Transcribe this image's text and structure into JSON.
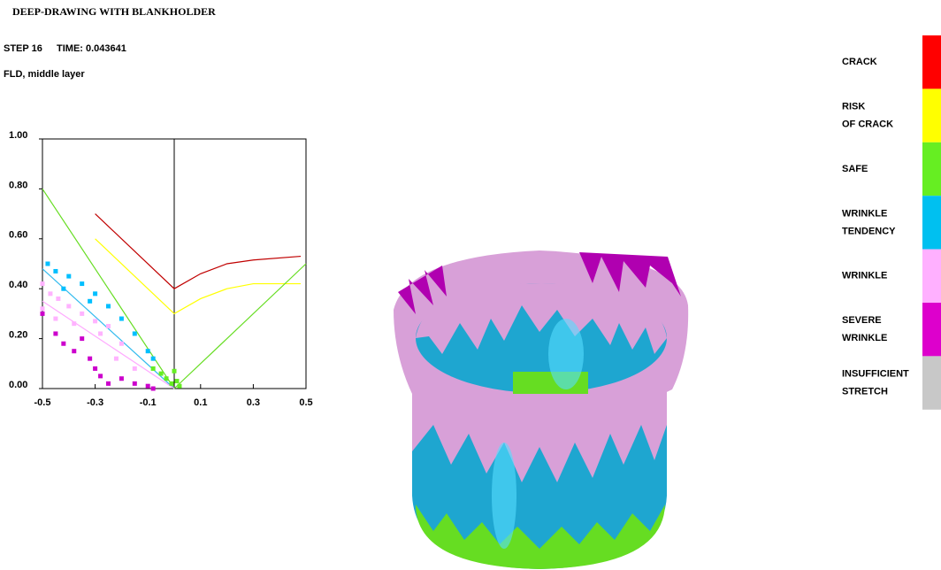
{
  "title": "DEEP-DRAWING WITH BLANKHOLDER",
  "step": "STEP 16",
  "time_label": "TIME:",
  "time": "0.043641",
  "result": "FLD, middle layer",
  "chart_data": {
    "type": "scatter",
    "xlim": [
      -0.5,
      0.5
    ],
    "ylim": [
      0,
      1.0
    ],
    "xticks": [
      -0.5,
      -0.3,
      -0.1,
      0.1,
      0.3,
      0.5
    ],
    "yticks": [
      {
        "value": 0,
        "label": "0.00"
      },
      {
        "value": 0.2,
        "label": "0.20"
      },
      {
        "value": 0.4,
        "label": "0.40"
      },
      {
        "value": 0.6,
        "label": "0.60"
      },
      {
        "value": 0.8,
        "label": "0.80"
      },
      {
        "value": 1.0,
        "label": "1.00"
      }
    ],
    "curves": [
      {
        "color": "#c00000",
        "x": [
          -0.3,
          0,
          0.1,
          0.2,
          0.3,
          0.48
        ],
        "y": [
          0.7,
          0.4,
          0.46,
          0.5,
          0.515,
          0.53
        ]
      },
      {
        "color": "#ffff00",
        "x": [
          -0.3,
          0,
          0.1,
          0.2,
          0.3,
          0.48
        ],
        "y": [
          0.6,
          0.3,
          0.36,
          0.4,
          0.42,
          0.42
        ]
      },
      {
        "color": "#66dd22",
        "x": [
          -0.5,
          0,
          0.5
        ],
        "y": [
          0.8,
          0,
          0.5
        ]
      },
      {
        "color": "#33bbee",
        "x": [
          -0.5,
          0
        ],
        "y": [
          0.48,
          0
        ]
      },
      {
        "color": "#ffaaff",
        "x": [
          -0.5,
          0
        ],
        "y": [
          0.35,
          0
        ]
      }
    ],
    "series": [
      {
        "color": "#00bfff",
        "x": [
          -0.48,
          -0.45,
          -0.42,
          -0.4,
          -0.35,
          -0.32,
          -0.3,
          -0.25,
          -0.2,
          -0.15,
          -0.1,
          -0.08
        ],
        "y": [
          0.5,
          0.47,
          0.4,
          0.45,
          0.42,
          0.35,
          0.38,
          0.33,
          0.28,
          0.22,
          0.15,
          0.12
        ]
      },
      {
        "color": "#ffb3ff",
        "x": [
          -0.5,
          -0.47,
          -0.44,
          -0.4,
          -0.35,
          -0.3,
          -0.28,
          -0.25,
          -0.2,
          -0.5,
          -0.45,
          -0.38,
          -0.22,
          -0.15
        ],
        "y": [
          0.42,
          0.38,
          0.36,
          0.33,
          0.3,
          0.27,
          0.22,
          0.25,
          0.18,
          0.32,
          0.28,
          0.26,
          0.12,
          0.08
        ]
      },
      {
        "color": "#cc00cc",
        "x": [
          -0.5,
          -0.45,
          -0.42,
          -0.38,
          -0.35,
          -0.32,
          -0.3,
          -0.28,
          -0.25,
          -0.2,
          -0.15,
          -0.1,
          -0.08
        ],
        "y": [
          0.3,
          0.22,
          0.18,
          0.15,
          0.2,
          0.12,
          0.08,
          0.05,
          0.02,
          0.04,
          0.02,
          0.01,
          0.0
        ]
      },
      {
        "color": "#66ee22",
        "x": [
          -0.08,
          -0.05,
          -0.03,
          -0.01,
          0,
          0.01,
          0.02
        ],
        "y": [
          0.08,
          0.06,
          0.04,
          0.02,
          0.07,
          0.03,
          0.01
        ]
      }
    ]
  },
  "legend": [
    {
      "label": [
        "CRACK"
      ],
      "color": "#ff0000"
    },
    {
      "label": [
        "RISK",
        "OF CRACK"
      ],
      "color": "#ffff00"
    },
    {
      "label": [
        "SAFE"
      ],
      "color": "#66ee22"
    },
    {
      "label": [
        "WRINKLE",
        "TENDENCY"
      ],
      "color": "#00c0f0"
    },
    {
      "label": [
        "WRINKLE"
      ],
      "color": "#ffb0ff"
    },
    {
      "label": [
        "SEVERE",
        "WRINKLE"
      ],
      "color": "#dd00cc"
    },
    {
      "label": [
        "INSUFFICIENT",
        "STRETCH"
      ],
      "color": "#c8c8c8"
    }
  ]
}
